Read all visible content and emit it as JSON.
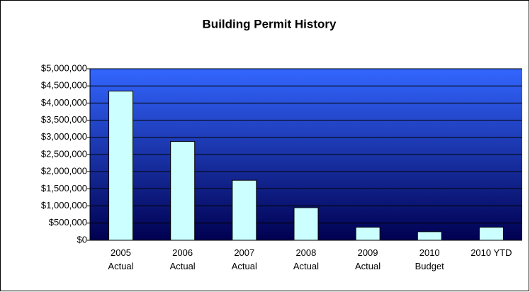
{
  "chart_data": {
    "type": "bar",
    "title": "Building Permit History",
    "categories": [
      "2005\nActual",
      "2006\nActual",
      "2007\nActual",
      "2008\nActual",
      "2009\nActual",
      "2010\nBudget",
      "2010 YTD"
    ],
    "values": [
      4350000,
      2880000,
      1750000,
      950000,
      380000,
      250000,
      380000
    ],
    "color": "#ccffff",
    "ylim": [
      0,
      5000000
    ],
    "yticks": [
      {
        "value": 0,
        "label": "$0"
      },
      {
        "value": 500000,
        "label": "$500,000"
      },
      {
        "value": 1000000,
        "label": "$1,000,000"
      },
      {
        "value": 1500000,
        "label": "$1,500,000"
      },
      {
        "value": 2000000,
        "label": "$2,000,000"
      },
      {
        "value": 2500000,
        "label": "$2,500,000"
      },
      {
        "value": 3000000,
        "label": "$3,000,000"
      },
      {
        "value": 3500000,
        "label": "$3,500,000"
      },
      {
        "value": 4000000,
        "label": "$4,000,000"
      },
      {
        "value": 4500000,
        "label": "$4,500,000"
      },
      {
        "value": 5000000,
        "label": "$5,000,000"
      }
    ],
    "grid": true
  }
}
